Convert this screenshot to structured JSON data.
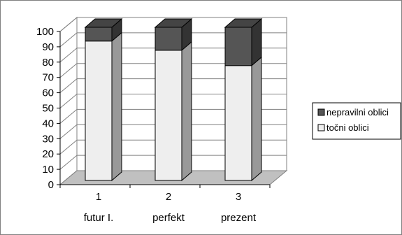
{
  "chart_data": {
    "type": "bar",
    "stacked": true,
    "three_d": true,
    "categories": [
      "1",
      "2",
      "3"
    ],
    "category_sublabels": [
      "futur I.",
      "perfekt",
      "prezent"
    ],
    "ylim": [
      0,
      100
    ],
    "yticks": [
      0,
      10,
      20,
      30,
      40,
      50,
      60,
      70,
      80,
      90,
      100
    ],
    "grid": true,
    "legend_position": "right",
    "series": [
      {
        "name": "točni oblici",
        "values": [
          91,
          85,
          75
        ],
        "color": "#eeeeee"
      },
      {
        "name": "nepravilni oblici",
        "values": [
          9,
          15,
          25
        ],
        "color": "#555555"
      }
    ],
    "legend": [
      {
        "name": "nepravilni oblici",
        "color": "#555555"
      },
      {
        "name": "točni oblici",
        "color": "#eeeeee"
      }
    ],
    "colors": {
      "floor": "#c0c0c0",
      "side_light": "#999999",
      "side_dark": "#333333",
      "top_light": "#d8d8d8",
      "top_dark": "#444444"
    }
  }
}
